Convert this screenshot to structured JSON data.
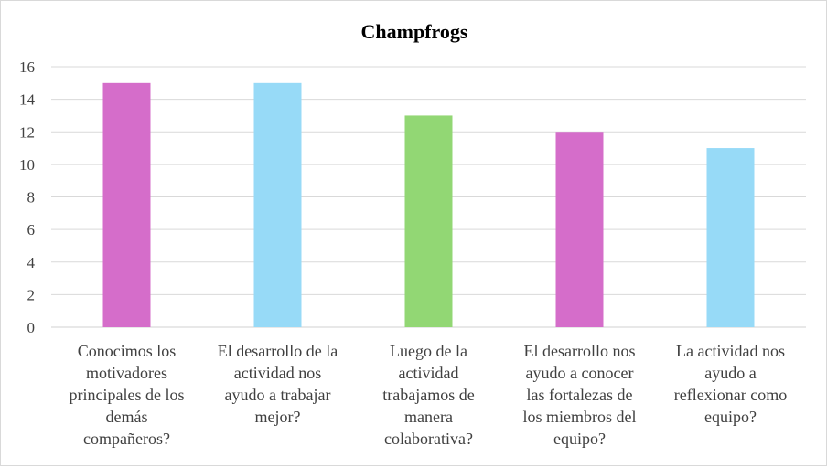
{
  "chart_data": {
    "type": "bar",
    "title": "Champfrogs",
    "xlabel": "",
    "ylabel": "",
    "ylim": [
      0,
      16
    ],
    "yticks": [
      0,
      2,
      4,
      6,
      8,
      10,
      12,
      14,
      16
    ],
    "grid": true,
    "legend": "none",
    "categories": [
      [
        "Conocimos los",
        "motivadores",
        "principales de los",
        "demás",
        "compañeros?"
      ],
      [
        "El desarrollo de la",
        "actividad nos",
        "ayudo a trabajar",
        "mejor?"
      ],
      [
        "Luego de la",
        "actividad",
        "trabajamos de",
        "manera",
        "colaborativa?"
      ],
      [
        "El desarrollo nos",
        "ayudo a conocer",
        "las fortalezas de",
        "los miembros del",
        "equipo?"
      ],
      [
        "La actividad nos",
        "ayudo a",
        "reflexionar como",
        "equipo?"
      ]
    ],
    "values": [
      15,
      15,
      13,
      12,
      11
    ],
    "colors": [
      "#d56dca",
      "#97daf7",
      "#92d774",
      "#d56dca",
      "#97daf7"
    ]
  }
}
